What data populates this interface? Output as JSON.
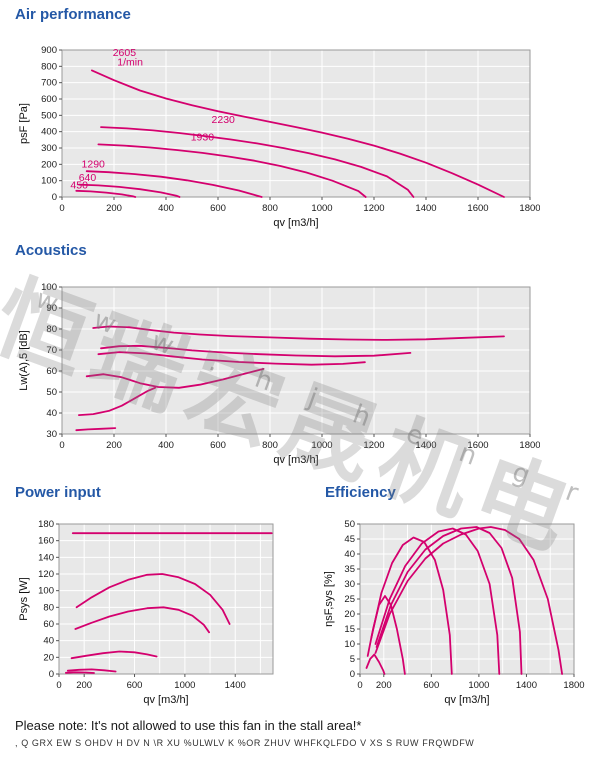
{
  "theme": {
    "title_color": "#2458a6",
    "curve_color": "#d4006e",
    "plot_bg": "#e8e8e8",
    "grid_color": "#ffffff",
    "border_color": "#9a9a9a",
    "tick_color": "#1a1a1a"
  },
  "watermark": {
    "cjk": "恒瑞宏晟机电",
    "url": "w w w . h j h e n g r u n . c o m"
  },
  "footer": {
    "note": "Please note: It's not allowed to use this fan in the stall area!*",
    "fine_print": ", Q  GRX EW   S OHDV H   DV N  \\R XU  %ULWLV K  %OR ZHUV  WHFKQLFDO  V XS S RUW  FRQWDFW"
  },
  "chart_data": [
    {
      "id": "air",
      "type": "line",
      "title": "Air performance",
      "xlabel": "qv [m3/h]",
      "ylabel": "psF [Pa]",
      "xlim": [
        0,
        1800
      ],
      "ylim": [
        0,
        900
      ],
      "xgrid_step": 200,
      "ytick_step": 100,
      "xtick_labels": [
        0,
        200,
        400,
        600,
        800,
        1000,
        1200,
        1400,
        1600,
        1800
      ],
      "legend": "grid on, speed labels in 1/min on curves",
      "series": [
        {
          "name": "2605 1/min",
          "points": [
            [
              115,
              775
            ],
            [
              200,
              715
            ],
            [
              300,
              652
            ],
            [
              400,
              603
            ],
            [
              500,
              562
            ],
            [
              600,
              525
            ],
            [
              700,
              492
            ],
            [
              800,
              460
            ],
            [
              900,
              428
            ],
            [
              1000,
              394
            ],
            [
              1100,
              357
            ],
            [
              1200,
              315
            ],
            [
              1300,
              266
            ],
            [
              1400,
              210
            ],
            [
              1500,
              146
            ],
            [
              1600,
              76
            ],
            [
              1700,
              0
            ]
          ]
        },
        {
          "name": "2230",
          "points": [
            [
              150,
              428
            ],
            [
              250,
              420
            ],
            [
              350,
              408
            ],
            [
              450,
              392
            ],
            [
              550,
              373
            ],
            [
              650,
              352
            ],
            [
              750,
              328
            ],
            [
              850,
              300
            ],
            [
              950,
              268
            ],
            [
              1050,
              230
            ],
            [
              1150,
              184
            ],
            [
              1250,
              126
            ],
            [
              1330,
              45
            ],
            [
              1352,
              0
            ]
          ]
        },
        {
          "name": "1930",
          "points": [
            [
              140,
              322
            ],
            [
              240,
              315
            ],
            [
              340,
              303
            ],
            [
              440,
              288
            ],
            [
              540,
              270
            ],
            [
              640,
              248
            ],
            [
              740,
              222
            ],
            [
              840,
              190
            ],
            [
              940,
              150
            ],
            [
              1040,
              100
            ],
            [
              1140,
              36
            ],
            [
              1168,
              0
            ]
          ]
        },
        {
          "name": "1290",
          "points": [
            [
              95,
              158
            ],
            [
              180,
              152
            ],
            [
              280,
              140
            ],
            [
              380,
              124
            ],
            [
              480,
              102
            ],
            [
              580,
              74
            ],
            [
              680,
              40
            ],
            [
              768,
              0
            ]
          ]
        },
        {
          "name": "640",
          "points": [
            [
              65,
              76
            ],
            [
              140,
              71
            ],
            [
              220,
              62
            ],
            [
              300,
              48
            ],
            [
              380,
              28
            ],
            [
              440,
              8
            ],
            [
              452,
              0
            ]
          ]
        },
        {
          "name": "450",
          "points": [
            [
              55,
              38
            ],
            [
              110,
              34
            ],
            [
              170,
              27
            ],
            [
              230,
              16
            ],
            [
              272,
              4
            ],
            [
              282,
              0
            ]
          ]
        }
      ],
      "labels": [
        {
          "text": "2605",
          "x": 240,
          "y": 862
        },
        {
          "text": "1/min",
          "x": 262,
          "y": 804
        },
        {
          "text": "2230",
          "x": 620,
          "y": 452
        },
        {
          "text": "1930",
          "x": 540,
          "y": 345
        },
        {
          "text": "1290",
          "x": 120,
          "y": 182
        },
        {
          "text": "640",
          "x": 98,
          "y": 98
        },
        {
          "text": "450",
          "x": 66,
          "y": 52
        }
      ]
    },
    {
      "id": "acoustics",
      "type": "line",
      "title": "Acoustics",
      "xlabel": "qv [m3/h]",
      "ylabel": "Lw(A),5 [dB]",
      "xlim": [
        0,
        1800
      ],
      "ylim": [
        30,
        100
      ],
      "xgrid_step": 200,
      "ytick_step": 10,
      "xtick_labels": [
        0,
        200,
        400,
        600,
        800,
        1000,
        1200,
        1400,
        1600,
        1800
      ],
      "series": [
        {
          "name": "2605 1/min",
          "points": [
            [
              120,
              80.5
            ],
            [
              180,
              81.2
            ],
            [
              260,
              80.8
            ],
            [
              340,
              79.5
            ],
            [
              430,
              78.3
            ],
            [
              530,
              77.4
            ],
            [
              650,
              76.6
            ],
            [
              800,
              76
            ],
            [
              950,
              75.4
            ],
            [
              1100,
              75
            ],
            [
              1250,
              74.8
            ],
            [
              1400,
              75.1
            ],
            [
              1550,
              75.8
            ],
            [
              1700,
              76.5
            ]
          ]
        },
        {
          "name": "2230",
          "points": [
            [
              150,
              70.8
            ],
            [
              220,
              71.8
            ],
            [
              300,
              72
            ],
            [
              400,
              71
            ],
            [
              500,
              69.8
            ],
            [
              620,
              68.8
            ],
            [
              760,
              68
            ],
            [
              900,
              67.4
            ],
            [
              1050,
              67
            ],
            [
              1200,
              67.3
            ],
            [
              1340,
              68.6
            ]
          ]
        },
        {
          "name": "1930",
          "points": [
            [
              140,
              68
            ],
            [
              220,
              69
            ],
            [
              320,
              68.4
            ],
            [
              420,
              67
            ],
            [
              540,
              65.5
            ],
            [
              680,
              64.3
            ],
            [
              820,
              63.5
            ],
            [
              960,
              63
            ],
            [
              1080,
              63.4
            ],
            [
              1165,
              64.2
            ]
          ]
        },
        {
          "name": "1290",
          "points": [
            [
              95,
              57.5
            ],
            [
              160,
              58.5
            ],
            [
              230,
              57
            ],
            [
              300,
              54.2
            ],
            [
              370,
              52.4
            ],
            [
              450,
              52
            ],
            [
              530,
              53.5
            ],
            [
              620,
              56
            ],
            [
              700,
              58.6
            ],
            [
              775,
              61
            ]
          ]
        },
        {
          "name": "640",
          "points": [
            [
              65,
              39
            ],
            [
              120,
              39.5
            ],
            [
              180,
              41
            ],
            [
              230,
              43.5
            ],
            [
              280,
              47
            ],
            [
              330,
              50.5
            ],
            [
              358,
              52
            ]
          ]
        },
        {
          "name": "450",
          "points": [
            [
              55,
              31.8
            ],
            [
              100,
              32.2
            ],
            [
              150,
              32.5
            ],
            [
              205,
              32.8
            ]
          ]
        }
      ],
      "labels": []
    },
    {
      "id": "power",
      "type": "line",
      "title": "Power input",
      "xlabel": "qv [m3/h]",
      "ylabel": "Psys [W]",
      "xlim": [
        0,
        1700
      ],
      "ylim": [
        0,
        180
      ],
      "xgrid_step": 200,
      "ytick_step": 20,
      "xtick_labels": [
        0,
        200,
        600,
        1000,
        1400
      ],
      "series": [
        {
          "name": "2605 1/min",
          "points": [
            [
              110,
              169
            ],
            [
              1690,
              169
            ]
          ]
        },
        {
          "name": "2230",
          "points": [
            [
              140,
              80
            ],
            [
              260,
              92
            ],
            [
              400,
              104
            ],
            [
              550,
              113
            ],
            [
              700,
              119
            ],
            [
              820,
              120
            ],
            [
              950,
              116
            ],
            [
              1080,
              108
            ],
            [
              1200,
              95
            ],
            [
              1300,
              77
            ],
            [
              1355,
              60
            ]
          ]
        },
        {
          "name": "1930",
          "points": [
            [
              130,
              54
            ],
            [
              250,
              61
            ],
            [
              400,
              69
            ],
            [
              550,
              75
            ],
            [
              700,
              79
            ],
            [
              830,
              80
            ],
            [
              950,
              77
            ],
            [
              1060,
              70
            ],
            [
              1150,
              59
            ],
            [
              1192,
              50
            ]
          ]
        },
        {
          "name": "1290",
          "points": [
            [
              100,
              19
            ],
            [
              220,
              22
            ],
            [
              350,
              25
            ],
            [
              480,
              27
            ],
            [
              600,
              26
            ],
            [
              700,
              23.5
            ],
            [
              775,
              21
            ]
          ]
        },
        {
          "name": "640",
          "points": [
            [
              70,
              4
            ],
            [
              160,
              5
            ],
            [
              260,
              5.5
            ],
            [
              360,
              4.5
            ],
            [
              450,
              3
            ]
          ]
        },
        {
          "name": "450",
          "points": [
            [
              55,
              1.5
            ],
            [
              130,
              2
            ],
            [
              210,
              1.8
            ],
            [
              278,
              1.2
            ]
          ]
        }
      ],
      "labels": []
    },
    {
      "id": "efficiency",
      "type": "line",
      "title": "Efficiency",
      "xlabel": "qv [m3/h]",
      "ylabel": "ηsF,sys [%]",
      "xlim": [
        0,
        1800
      ],
      "ylim": [
        0,
        50
      ],
      "xgrid_step": 200,
      "ytick_step": 5,
      "xtick_labels": [
        0,
        200,
        600,
        1000,
        1400,
        1800
      ],
      "series": [
        {
          "name": "2605 1/min",
          "points": [
            [
              130,
              7
            ],
            [
              250,
              20
            ],
            [
              400,
              31
            ],
            [
              550,
              38.5
            ],
            [
              700,
              43.5
            ],
            [
              850,
              46.5
            ],
            [
              1000,
              48.5
            ],
            [
              1100,
              49
            ],
            [
              1220,
              48
            ],
            [
              1340,
              45
            ],
            [
              1460,
              38
            ],
            [
              1580,
              25
            ],
            [
              1670,
              8
            ],
            [
              1700,
              0
            ]
          ]
        },
        {
          "name": "2230",
          "points": [
            [
              140,
              9
            ],
            [
              260,
              23
            ],
            [
              400,
              34
            ],
            [
              550,
              41.5
            ],
            [
              700,
              46
            ],
            [
              850,
              48.5
            ],
            [
              980,
              49
            ],
            [
              1090,
              47
            ],
            [
              1190,
              42
            ],
            [
              1280,
              32
            ],
            [
              1345,
              14
            ],
            [
              1358,
              0
            ]
          ]
        },
        {
          "name": "1930",
          "points": [
            [
              130,
              10
            ],
            [
              250,
              25
            ],
            [
              380,
              36
            ],
            [
              520,
              43.5
            ],
            [
              660,
              47.5
            ],
            [
              780,
              48.5
            ],
            [
              890,
              46.5
            ],
            [
              990,
              41
            ],
            [
              1090,
              30
            ],
            [
              1155,
              13
            ],
            [
              1172,
              0
            ]
          ]
        },
        {
          "name": "1290",
          "points": [
            [
              95,
              12
            ],
            [
              180,
              27
            ],
            [
              270,
              37
            ],
            [
              360,
              43
            ],
            [
              450,
              45.5
            ],
            [
              540,
              44
            ],
            [
              630,
              38
            ],
            [
              700,
              28
            ],
            [
              755,
              13
            ],
            [
              772,
              0
            ]
          ]
        },
        {
          "name": "640",
          "points": [
            [
              65,
              6
            ],
            [
              110,
              15
            ],
            [
              160,
              23
            ],
            [
              210,
              26
            ],
            [
              260,
              23
            ],
            [
              310,
              15
            ],
            [
              360,
              5
            ],
            [
              378,
              0
            ]
          ]
        },
        {
          "name": "450",
          "points": [
            [
              55,
              2
            ],
            [
              85,
              5
            ],
            [
              120,
              6.5
            ],
            [
              160,
              4
            ],
            [
              195,
              1.2
            ],
            [
              206,
              0
            ]
          ]
        }
      ],
      "labels": []
    }
  ]
}
